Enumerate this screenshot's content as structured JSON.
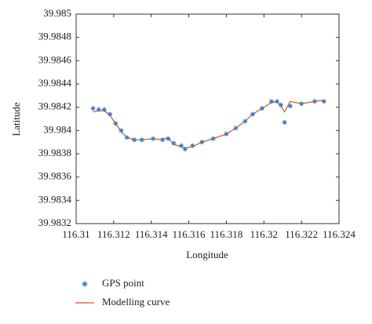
{
  "chart_data": {
    "type": "scatter-line",
    "xlabel": "Longitude",
    "ylabel": "Latitude",
    "xlim": [
      116.31,
      116.324
    ],
    "xticks": [
      116.31,
      116.312,
      116.314,
      116.316,
      116.318,
      116.32,
      116.322,
      116.324
    ],
    "ylim": [
      39.9832,
      39.985
    ],
    "yticks": [
      39.9832,
      39.9834,
      39.9836,
      39.9838,
      39.984,
      39.9842,
      39.9844,
      39.9846,
      39.9848,
      39.985
    ],
    "legend": "bottom",
    "x": [
      116.3109,
      116.3112,
      116.3115,
      116.3118,
      116.3121,
      116.3124,
      116.3127,
      116.3131,
      116.3135,
      116.3141,
      116.3146,
      116.3149,
      116.3152,
      116.3156,
      116.3158,
      116.3162,
      116.3167,
      116.3173,
      116.318,
      116.3185,
      116.319,
      116.3194,
      116.3199,
      116.3204,
      116.3207,
      116.3209,
      116.3211,
      116.3214,
      116.322,
      116.3227,
      116.3232
    ],
    "series": [
      {
        "name": "GPS point",
        "style": "marker",
        "color": "#3a7dc4",
        "values": [
          39.98419,
          39.98418,
          39.98418,
          39.98414,
          39.98406,
          39.984,
          39.98394,
          39.98392,
          39.98392,
          39.98393,
          39.98392,
          39.98393,
          39.98389,
          39.98387,
          39.98384,
          39.98387,
          39.9839,
          39.98393,
          39.98397,
          39.98402,
          39.98408,
          39.98414,
          39.98419,
          39.98425,
          39.98425,
          39.98422,
          39.98407,
          39.98421,
          39.98423,
          39.98425,
          39.98425
        ]
      },
      {
        "name": "Modelling curve",
        "style": "line",
        "color": "#d95319",
        "values": [
          39.98416,
          39.98417,
          39.98417,
          39.98413,
          39.98406,
          39.98399,
          39.98394,
          39.98392,
          39.98392,
          39.98393,
          39.98392,
          39.98394,
          39.98388,
          39.98386,
          39.98385,
          39.98386,
          39.9839,
          39.98393,
          39.98397,
          39.98402,
          39.98408,
          39.98414,
          39.98419,
          39.98424,
          39.98425,
          39.98421,
          39.98416,
          39.98425,
          39.98423,
          39.98425,
          39.98426
        ]
      }
    ]
  }
}
